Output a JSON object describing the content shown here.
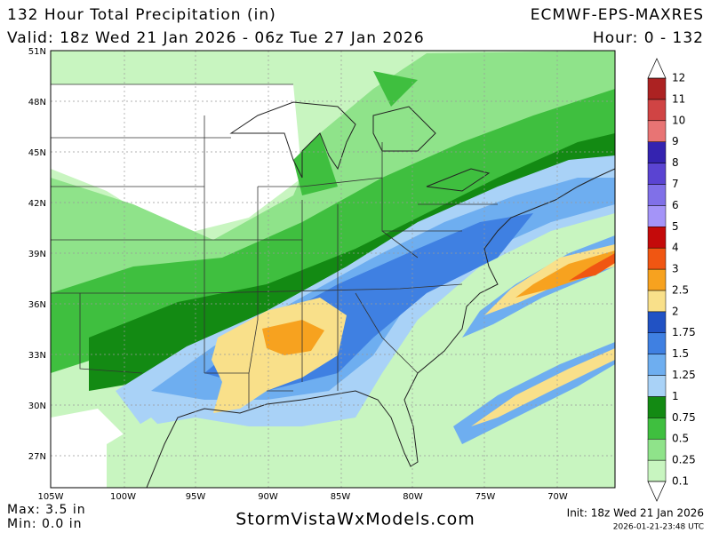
{
  "header": {
    "title": "132 Hour Total Precipitation (in)",
    "model": "ECMWF-EPS-MAXRES",
    "valid": "Valid: 18z Wed 21 Jan 2026 - 06z Tue 27 Jan 2026",
    "hour": "Hour: 0 - 132"
  },
  "map": {
    "lat_labels": [
      "51N",
      "48N",
      "45N",
      "42N",
      "39N",
      "36N",
      "33N",
      "30N",
      "27N"
    ],
    "lon_labels": [
      "105W",
      "100W",
      "95W",
      "90W",
      "85W",
      "80W",
      "75W",
      "70W"
    ]
  },
  "legend": {
    "labels": [
      "0.1",
      "0.25",
      "0.5",
      "0.75",
      "1",
      "1.25",
      "1.5",
      "1.75",
      "2",
      "2.5",
      "3",
      "4",
      "5",
      "6",
      "7",
      "8",
      "9",
      "10",
      "11",
      "12"
    ],
    "colors": [
      "#c8f5c0",
      "#8fe38a",
      "#3fbf3f",
      "#138a13",
      "#a9d2f7",
      "#6eaef0",
      "#3f80e2",
      "#2152c4",
      "#f9e08a",
      "#f7a21f",
      "#f05612",
      "#c40a0a",
      "#a494f8",
      "#8070e8",
      "#5a44d2",
      "#3423b0",
      "#e87474",
      "#d04444",
      "#ac2222"
    ]
  },
  "footer": {
    "max": "Max: 3.5 in",
    "min": "Min: 0.0 in",
    "site": "StormVistaWxModels.com",
    "init": "Init: 18z Wed 21 Jan 2026",
    "stamp": "2026-01-21-23:48 UTC"
  }
}
